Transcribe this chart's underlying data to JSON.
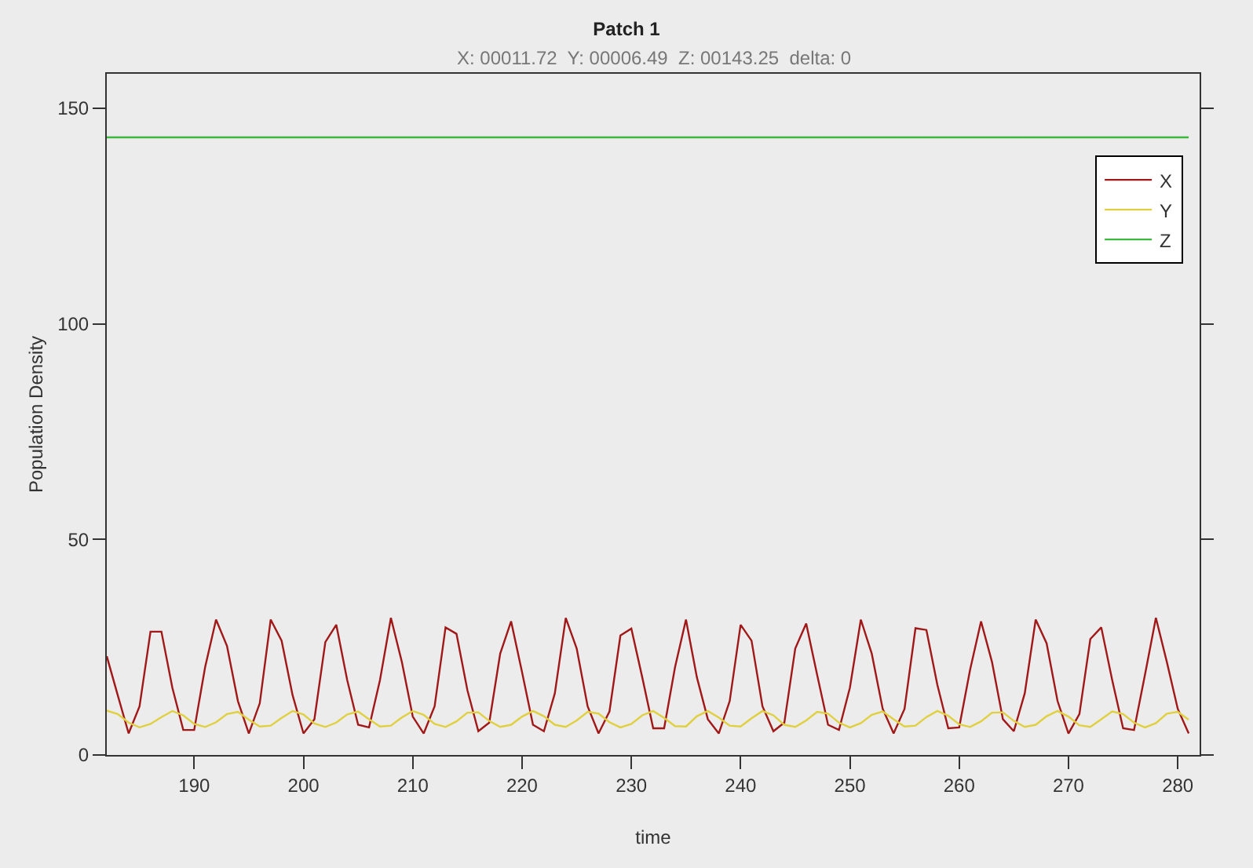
{
  "chart_data": {
    "type": "line",
    "title": "Patch 1",
    "subtitle": "X: 00011.72  Y: 00006.49  Z: 00143.25  delta: 0",
    "xlabel": "time",
    "ylabel": "Population Density",
    "x": [
      182,
      183,
      184,
      185,
      186,
      187,
      188,
      189,
      190,
      191,
      192,
      193,
      194,
      195,
      196,
      197,
      198,
      199,
      200,
      201,
      202,
      203,
      204,
      205,
      206,
      207,
      208,
      209,
      210,
      211,
      212,
      213,
      214,
      215,
      216,
      217,
      218,
      219,
      220,
      221,
      222,
      223,
      224,
      225,
      226,
      227,
      228,
      229,
      230,
      231,
      232,
      233,
      234,
      235,
      236,
      237,
      238,
      239,
      240,
      241,
      242,
      243,
      244,
      245,
      246,
      247,
      248,
      249,
      250,
      251,
      252,
      253,
      254,
      255,
      256,
      257,
      258,
      259,
      260,
      261,
      262,
      263,
      264,
      265,
      266,
      267,
      268,
      269,
      270,
      271,
      272,
      273,
      274,
      275,
      276,
      277,
      278,
      279,
      280,
      281
    ],
    "series": [
      {
        "name": "X",
        "color": "#a01818",
        "values": [
          22.9,
          13.9,
          5.0,
          11.3,
          28.6,
          28.6,
          15.6,
          5.8,
          5.8,
          20.4,
          31.4,
          25.3,
          12.5,
          5.0,
          12.0,
          31.4,
          26.5,
          13.9,
          5.0,
          8.3,
          26.2,
          30.2,
          17.4,
          7.0,
          6.4,
          17.4,
          31.8,
          21.6,
          8.9,
          5.0,
          11.3,
          29.6,
          28.1,
          15.0,
          5.5,
          7.5,
          23.5,
          31.0,
          19.2,
          7.0,
          5.5,
          14.3,
          31.8,
          24.7,
          11.3,
          5.0,
          10.1,
          27.7,
          29.3,
          18.0,
          6.2,
          6.2,
          20.4,
          31.4,
          18.0,
          8.3,
          5.0,
          12.5,
          30.2,
          26.5,
          11.3,
          5.5,
          7.5,
          24.7,
          30.5,
          18.6,
          7.0,
          5.8,
          15.6,
          31.4,
          23.5,
          10.7,
          5.0,
          10.7,
          29.4,
          29.0,
          16.3,
          6.2,
          6.4,
          19.8,
          31.0,
          21.6,
          8.3,
          5.5,
          14.3,
          31.4,
          25.9,
          12.5,
          5.0,
          9.5,
          26.9,
          29.6,
          17.4,
          6.2,
          5.8,
          18.6,
          31.8,
          21.6,
          10.7,
          5.0
        ]
      },
      {
        "name": "Y",
        "color": "#e0d040",
        "values": [
          10.3,
          9.5,
          7.5,
          6.4,
          7.2,
          8.8,
          10.2,
          9.2,
          7.2,
          6.5,
          7.6,
          9.5,
          10.0,
          8.2,
          6.6,
          6.8,
          8.6,
          10.2,
          9.4,
          7.3,
          6.5,
          7.5,
          9.4,
          10.1,
          8.3,
          6.6,
          6.8,
          8.7,
          10.2,
          9.3,
          7.2,
          6.5,
          7.8,
          9.8,
          9.9,
          7.9,
          6.5,
          7.0,
          8.9,
          10.2,
          9.0,
          7.0,
          6.5,
          8.0,
          10.0,
          9.6,
          7.6,
          6.4,
          7.2,
          9.2,
          10.2,
          8.6,
          6.7,
          6.6,
          9.0,
          10.2,
          8.7,
          6.8,
          6.6,
          8.5,
          10.2,
          9.2,
          7.0,
          6.5,
          8.0,
          10.0,
          9.6,
          7.5,
          6.4,
          7.4,
          9.3,
          10.1,
          8.3,
          6.6,
          6.8,
          8.8,
          10.2,
          9.1,
          7.1,
          6.5,
          7.8,
          9.8,
          9.9,
          7.9,
          6.5,
          7.0,
          9.0,
          10.2,
          8.9,
          6.9,
          6.5,
          8.3,
          10.1,
          9.5,
          7.5,
          6.4,
          7.4,
          9.6,
          10.0,
          8.2
        ]
      },
      {
        "name": "Z",
        "color": "#3cb83c",
        "x": [
          182,
          281
        ],
        "values": [
          143.25,
          143.25
        ]
      }
    ],
    "xlim": [
      182,
      282
    ],
    "xticks": [
      190,
      200,
      210,
      220,
      230,
      240,
      250,
      260,
      270,
      280
    ],
    "ylim": [
      0,
      158
    ],
    "yticks": [
      0,
      50,
      100,
      150
    ],
    "grid": false,
    "legend": "top right",
    "marker": "none",
    "line_style": "solid"
  }
}
